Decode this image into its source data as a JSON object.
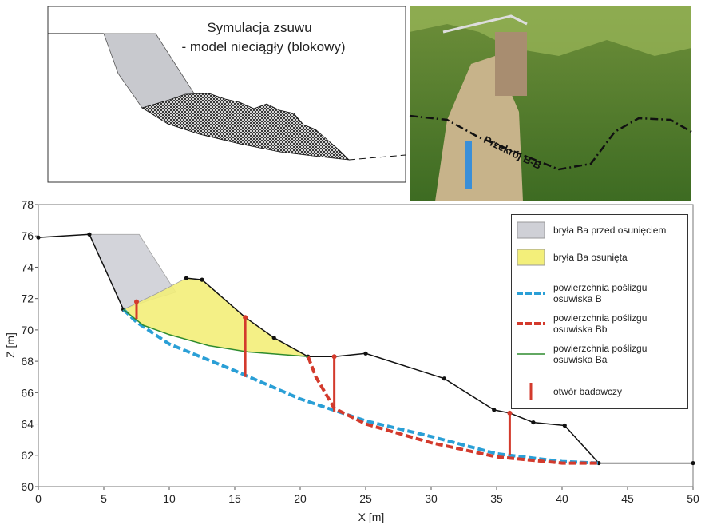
{
  "inset_model": {
    "title_lines": [
      "Symulacja zsuwu",
      "- model nieciągły (blokowy)"
    ]
  },
  "inset_photo": {
    "label": "Przekrój B-B"
  },
  "chart_data": {
    "type": "line",
    "xlabel": "X [m]",
    "ylabel": "Z [m]",
    "xlim": [
      0,
      50
    ],
    "ylim": [
      60,
      78
    ],
    "xticks": [
      0,
      5,
      10,
      15,
      20,
      25,
      30,
      35,
      40,
      45,
      50
    ],
    "yticks": [
      60,
      62,
      64,
      66,
      68,
      70,
      72,
      74,
      76,
      78
    ],
    "grid": false,
    "legend": "upper right",
    "series": [
      {
        "name": "bryła Ba przed osunięciem",
        "style": "area",
        "color": "#cfd0d6",
        "x": [
          3.9,
          7.7,
          10.5,
          8.5,
          6.5
        ],
        "values": [
          76.1,
          76.1,
          72.4,
          71.9,
          71.3
        ]
      },
      {
        "name": "bryła Ba osunięta",
        "style": "area",
        "color": "#f3ef7a",
        "x": [
          6.5,
          9,
          11.3,
          12.5,
          15.8,
          18,
          20.6,
          16,
          13,
          10,
          8
        ],
        "values": [
          71.3,
          72.3,
          73.3,
          73.2,
          70.8,
          69.5,
          68.3,
          68.6,
          69.0,
          69.7,
          70.3
        ]
      },
      {
        "style": "line",
        "color": "#111111",
        "markers": true,
        "x": [
          0,
          3.9,
          6.5,
          9,
          11.3,
          12.5,
          15.8,
          18,
          20.6,
          22.6,
          25,
          31,
          34.8,
          36,
          37.8,
          40.2,
          42.8,
          50
        ],
        "values": [
          75.9,
          76.1,
          71.3,
          null,
          73.3,
          73.2,
          70.8,
          69.5,
          68.3,
          68.3,
          68.5,
          66.9,
          64.9,
          64.7,
          64.1,
          63.9,
          61.5,
          61.5
        ]
      },
      {
        "name": "powierzchnia poślizgu osuwiska B",
        "style": "dashed",
        "color": "#2a9fd6",
        "x": [
          6.5,
          7.5,
          10,
          15,
          20,
          25,
          30,
          35,
          40,
          42.8
        ],
        "values": [
          71.3,
          70.5,
          69.1,
          67.4,
          65.6,
          64.2,
          63.2,
          62.1,
          61.6,
          61.5
        ]
      },
      {
        "name": "powierzchnia poślizgu osuwiska Bb",
        "style": "dashed",
        "color": "#d33a2c",
        "x": [
          20.6,
          21.2,
          22.6,
          25,
          30,
          35,
          40,
          42.8
        ],
        "values": [
          68.3,
          67.0,
          65.0,
          64.0,
          62.8,
          61.9,
          61.5,
          61.5
        ]
      },
      {
        "name": "powierzchnia poślizgu osuwiska Ba",
        "style": "line",
        "color": "#2e8b2e",
        "x": [
          6.5,
          8,
          10,
          13,
          16,
          20.6
        ],
        "values": [
          71.3,
          70.3,
          69.7,
          69.0,
          68.6,
          68.3
        ]
      }
    ],
    "boreholes": {
      "name": "otwór badawczy",
      "color": "#d33a2c",
      "x": [
        7.5,
        15.8,
        22.6,
        36
      ],
      "top": [
        71.8,
        70.8,
        68.3,
        64.7
      ],
      "bottom": [
        70.7,
        67.0,
        64.8,
        62.0
      ]
    }
  }
}
